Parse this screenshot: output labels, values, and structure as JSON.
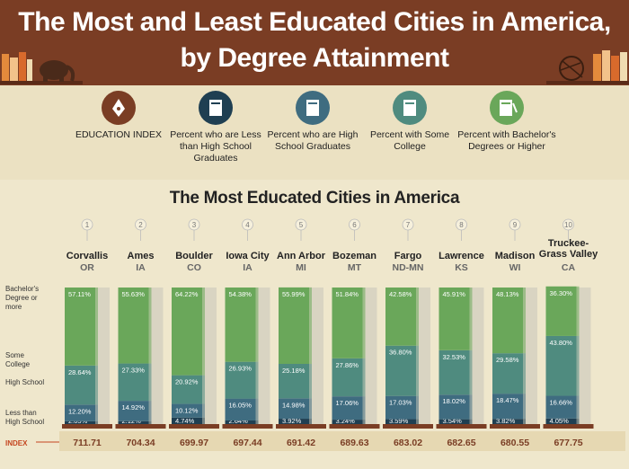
{
  "header": {
    "title_line1": "The Most and Least Educated Cities in America,",
    "title_line2": "by Degree Attainment"
  },
  "legend": {
    "items": [
      {
        "label": "EDUCATION INDEX",
        "icon": "pen-nib-icon",
        "color": "#7a3d24"
      },
      {
        "label": "Percent who are Less than High School Graduates",
        "icon": "book-icon",
        "color": "#1f3f52"
      },
      {
        "label": "Percent who are High School Graduates",
        "icon": "book-icon",
        "color": "#3f6c80"
      },
      {
        "label": "Percent with Some College",
        "icon": "book-icon",
        "color": "#4f8b7f"
      },
      {
        "label": "Percent with Bachelor's Degrees or Higher",
        "icon": "diploma-book-icon",
        "color": "#6aa75a"
      }
    ]
  },
  "chart_data": {
    "type": "bar",
    "stacked": true,
    "title": "The Most Educated Cities in America",
    "axis_labels": {
      "bachelors": "Bachelor's Degree or more",
      "some_college": "Some College",
      "high_school": "High School",
      "less_than_hs": "Less than High School",
      "index": "INDEX"
    },
    "colors": {
      "bachelors": "#6aa75a",
      "some_college": "#4f8b7f",
      "high_school": "#3f6c80",
      "less_than_hs": "#1f3f52",
      "index": "#7a3d24"
    },
    "cities": [
      {
        "rank": "1",
        "name": "Corvallis",
        "state": "OR",
        "bachelors": "57.11%",
        "some_college": "28.64%",
        "high_school": "12.20%",
        "less_than_hs": "2.05%",
        "index": "711.71"
      },
      {
        "rank": "2",
        "name": "Ames",
        "state": "IA",
        "bachelors": "55.63%",
        "some_college": "27.33%",
        "high_school": "14.92%",
        "less_than_hs": "2.12%",
        "index": "704.34"
      },
      {
        "rank": "3",
        "name": "Boulder",
        "state": "CO",
        "bachelors": "64.22%",
        "some_college": "20.92%",
        "high_school": "10.12%",
        "less_than_hs": "4.74%",
        "index": "699.97"
      },
      {
        "rank": "4",
        "name": "Iowa City",
        "state": "IA",
        "bachelors": "54.38%",
        "some_college": "26.93%",
        "high_school": "16.05%",
        "less_than_hs": "2.64%",
        "index": "697.44"
      },
      {
        "rank": "5",
        "name": "Ann Arbor",
        "state": "MI",
        "bachelors": "55.99%",
        "some_college": "25.18%",
        "high_school": "14.98%",
        "less_than_hs": "3.92%",
        "index": "691.42"
      },
      {
        "rank": "6",
        "name": "Bozeman",
        "state": "MT",
        "bachelors": "51.84%",
        "some_college": "27.86%",
        "high_school": "17.06%",
        "less_than_hs": "3.24%",
        "index": "689.63"
      },
      {
        "rank": "7",
        "name": "Fargo",
        "state": "ND-MN",
        "bachelors": "42.58%",
        "some_college": "36.80%",
        "high_school": "17.03%",
        "less_than_hs": "3.59%",
        "index": "683.02"
      },
      {
        "rank": "8",
        "name": "Lawrence",
        "state": "KS",
        "bachelors": "45.91%",
        "some_college": "32.53%",
        "high_school": "18.02%",
        "less_than_hs": "3.54%",
        "index": "682.65"
      },
      {
        "rank": "9",
        "name": "Madison",
        "state": "WI",
        "bachelors": "48.13%",
        "some_college": "29.58%",
        "high_school": "18.47%",
        "less_than_hs": "3.82%",
        "index": "680.55"
      },
      {
        "rank": "10",
        "name": "Truckee-Grass Valley",
        "state": "CA",
        "bachelors": "36.30%",
        "some_college": "43.80%",
        "high_school": "16.66%",
        "less_than_hs": "4.05%",
        "index": "677.75"
      }
    ]
  }
}
